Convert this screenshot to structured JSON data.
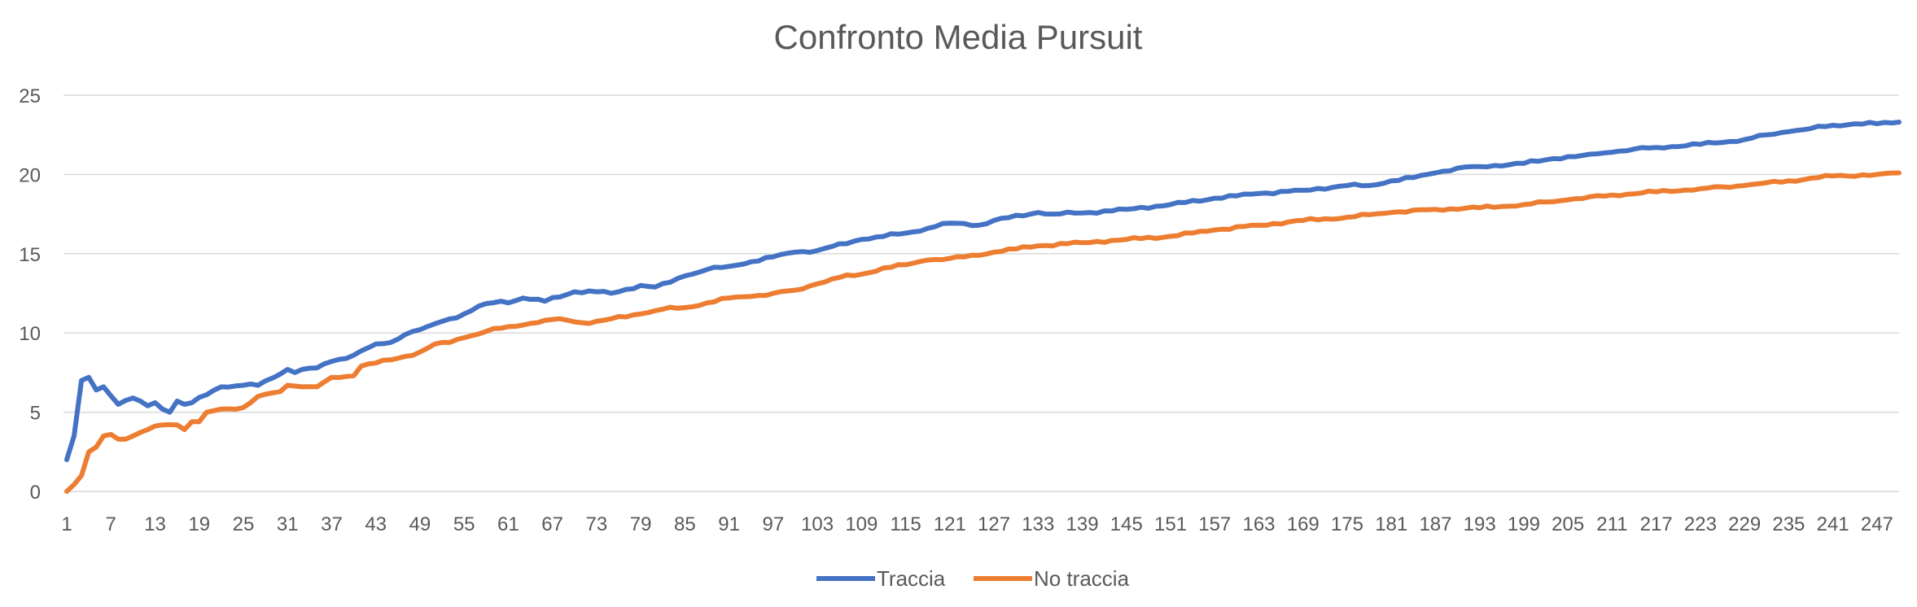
{
  "chart_data": {
    "type": "line",
    "title": "Confronto Media Pursuit",
    "xlabel": "",
    "ylabel": "",
    "x_start": 1,
    "x_end": 250,
    "x_tick_labels": [
      1,
      7,
      13,
      19,
      25,
      31,
      37,
      43,
      49,
      55,
      61,
      67,
      73,
      79,
      85,
      91,
      97,
      103,
      109,
      115,
      121,
      127,
      133,
      139,
      145,
      151,
      157,
      163,
      169,
      175,
      181,
      187,
      193,
      199,
      205,
      211,
      217,
      223,
      229,
      235,
      241,
      247
    ],
    "y_ticks": [
      0,
      5,
      10,
      15,
      20,
      25
    ],
    "ylim": [
      0,
      25
    ],
    "grid": "horizontal",
    "legend_position": "bottom",
    "series": [
      {
        "name": "Traccia",
        "color": "#4472C4",
        "anchors": [
          [
            1,
            2.0
          ],
          [
            2,
            3.5
          ],
          [
            3,
            7.0
          ],
          [
            4,
            7.2
          ],
          [
            5,
            6.4
          ],
          [
            6,
            6.6
          ],
          [
            8,
            5.5
          ],
          [
            10,
            5.9
          ],
          [
            12,
            5.4
          ],
          [
            13,
            5.6
          ],
          [
            14,
            5.2
          ],
          [
            15,
            5.0
          ],
          [
            16,
            5.7
          ],
          [
            17,
            5.5
          ],
          [
            18,
            5.6
          ],
          [
            20,
            6.1
          ],
          [
            22,
            6.6
          ],
          [
            25,
            6.7
          ],
          [
            27,
            6.7
          ],
          [
            30,
            7.4
          ],
          [
            31,
            7.7
          ],
          [
            32,
            7.5
          ],
          [
            33,
            7.7
          ],
          [
            35,
            7.8
          ],
          [
            37,
            8.2
          ],
          [
            40,
            8.6
          ],
          [
            43,
            9.3
          ],
          [
            45,
            9.4
          ],
          [
            47,
            9.9
          ],
          [
            50,
            10.4
          ],
          [
            55,
            11.2
          ],
          [
            57,
            11.7
          ],
          [
            60,
            12.0
          ],
          [
            61,
            11.9
          ],
          [
            63,
            12.2
          ],
          [
            66,
            12.0
          ],
          [
            70,
            12.6
          ],
          [
            73,
            12.6
          ],
          [
            75,
            12.5
          ],
          [
            79,
            13.0
          ],
          [
            81,
            12.9
          ],
          [
            83,
            13.2
          ],
          [
            85,
            13.6
          ],
          [
            88,
            14.0
          ],
          [
            91,
            14.2
          ],
          [
            97,
            14.8
          ],
          [
            100,
            15.1
          ],
          [
            103,
            15.2
          ],
          [
            109,
            15.9
          ],
          [
            115,
            16.3
          ],
          [
            118,
            16.6
          ],
          [
            120,
            16.9
          ],
          [
            123,
            16.9
          ],
          [
            125,
            16.8
          ],
          [
            127,
            17.1
          ],
          [
            133,
            17.6
          ],
          [
            135,
            17.5
          ],
          [
            140,
            17.6
          ],
          [
            145,
            17.8
          ],
          [
            151,
            18.1
          ],
          [
            157,
            18.5
          ],
          [
            163,
            18.8
          ],
          [
            169,
            19.0
          ],
          [
            175,
            19.3
          ],
          [
            178,
            19.3
          ],
          [
            181,
            19.6
          ],
          [
            184,
            19.8
          ],
          [
            187,
            20.1
          ],
          [
            190,
            20.4
          ],
          [
            193,
            20.5
          ],
          [
            199,
            20.7
          ],
          [
            203,
            21.0
          ],
          [
            207,
            21.2
          ],
          [
            211,
            21.4
          ],
          [
            214,
            21.6
          ],
          [
            217,
            21.7
          ],
          [
            223,
            21.9
          ],
          [
            229,
            22.2
          ],
          [
            232,
            22.5
          ],
          [
            235,
            22.7
          ],
          [
            238,
            22.9
          ],
          [
            241,
            23.1
          ],
          [
            244,
            23.2
          ],
          [
            247,
            23.2
          ],
          [
            250,
            23.3
          ]
        ]
      },
      {
        "name": "No traccia",
        "color": "#ED7D31",
        "anchors": [
          [
            1,
            0.0
          ],
          [
            3,
            1.0
          ],
          [
            4,
            2.5
          ],
          [
            5,
            2.8
          ],
          [
            6,
            3.5
          ],
          [
            7,
            3.6
          ],
          [
            8,
            3.3
          ],
          [
            9,
            3.3
          ],
          [
            10,
            3.5
          ],
          [
            12,
            3.9
          ],
          [
            14,
            4.2
          ],
          [
            16,
            4.2
          ],
          [
            17,
            3.9
          ],
          [
            18,
            4.4
          ],
          [
            19,
            4.4
          ],
          [
            20,
            5.0
          ],
          [
            22,
            5.2
          ],
          [
            25,
            5.3
          ],
          [
            27,
            6.0
          ],
          [
            30,
            6.3
          ],
          [
            31,
            6.7
          ],
          [
            33,
            6.6
          ],
          [
            35,
            6.6
          ],
          [
            37,
            7.2
          ],
          [
            40,
            7.3
          ],
          [
            41,
            7.9
          ],
          [
            43,
            8.1
          ],
          [
            46,
            8.4
          ],
          [
            49,
            8.8
          ],
          [
            51,
            9.3
          ],
          [
            53,
            9.4
          ],
          [
            55,
            9.7
          ],
          [
            58,
            10.1
          ],
          [
            61,
            10.4
          ],
          [
            64,
            10.6
          ],
          [
            66,
            10.8
          ],
          [
            68,
            10.9
          ],
          [
            70,
            10.7
          ],
          [
            72,
            10.6
          ],
          [
            75,
            10.9
          ],
          [
            79,
            11.2
          ],
          [
            82,
            11.5
          ],
          [
            85,
            11.6
          ],
          [
            88,
            11.9
          ],
          [
            91,
            12.2
          ],
          [
            94,
            12.3
          ],
          [
            97,
            12.5
          ],
          [
            100,
            12.7
          ],
          [
            103,
            13.1
          ],
          [
            106,
            13.5
          ],
          [
            109,
            13.7
          ],
          [
            112,
            14.1
          ],
          [
            115,
            14.3
          ],
          [
            118,
            14.6
          ],
          [
            121,
            14.7
          ],
          [
            125,
            14.9
          ],
          [
            127,
            15.1
          ],
          [
            130,
            15.3
          ],
          [
            133,
            15.5
          ],
          [
            139,
            15.7
          ],
          [
            145,
            15.9
          ],
          [
            151,
            16.1
          ],
          [
            157,
            16.5
          ],
          [
            163,
            16.8
          ],
          [
            169,
            17.1
          ],
          [
            172,
            17.2
          ],
          [
            175,
            17.3
          ],
          [
            181,
            17.6
          ],
          [
            187,
            17.8
          ],
          [
            193,
            17.9
          ],
          [
            199,
            18.1
          ],
          [
            205,
            18.4
          ],
          [
            211,
            18.7
          ],
          [
            217,
            18.9
          ],
          [
            223,
            19.1
          ],
          [
            229,
            19.3
          ],
          [
            235,
            19.6
          ],
          [
            241,
            19.9
          ],
          [
            247,
            20.0
          ],
          [
            250,
            20.1
          ]
        ]
      }
    ]
  }
}
